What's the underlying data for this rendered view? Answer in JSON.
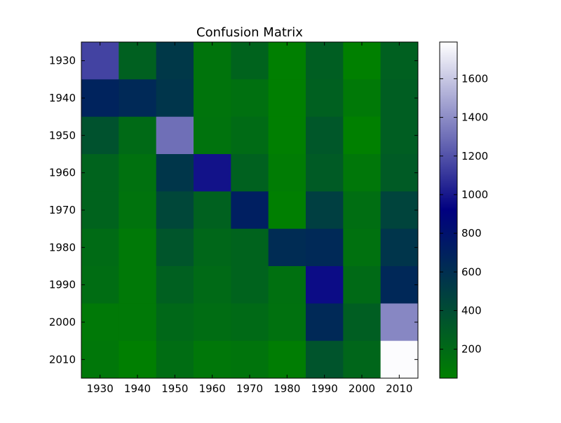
{
  "chart_data": {
    "type": "heatmap",
    "title": "Confusion Matrix",
    "xlabel": "",
    "ylabel": "",
    "x_categories": [
      "1930",
      "1940",
      "1950",
      "1960",
      "1970",
      "1980",
      "1990",
      "2000",
      "2010"
    ],
    "y_categories": [
      "1930",
      "1940",
      "1950",
      "1960",
      "1970",
      "1980",
      "1990",
      "2000",
      "2010"
    ],
    "values": [
      [
        1150,
        270,
        540,
        130,
        250,
        60,
        280,
        50,
        270
      ],
      [
        680,
        640,
        560,
        130,
        160,
        60,
        270,
        100,
        280
      ],
      [
        360,
        200,
        1300,
        140,
        190,
        60,
        330,
        50,
        280
      ],
      [
        250,
        150,
        550,
        980,
        260,
        80,
        300,
        110,
        300
      ],
      [
        250,
        140,
        440,
        260,
        710,
        60,
        490,
        170,
        460
      ],
      [
        190,
        100,
        340,
        220,
        250,
        620,
        640,
        150,
        560
      ],
      [
        180,
        100,
        270,
        200,
        250,
        160,
        960,
        200,
        650
      ],
      [
        100,
        100,
        210,
        180,
        200,
        150,
        640,
        280,
        1380
      ],
      [
        110,
        60,
        180,
        110,
        130,
        70,
        350,
        230,
        1780
      ]
    ],
    "colorbar": {
      "min": 50,
      "max": 1790,
      "ticks": [
        200,
        400,
        600,
        800,
        1000,
        1200,
        1400,
        1600
      ],
      "colormap": [
        "#008000",
        "#000080",
        "#ffffff"
      ]
    },
    "grid": false
  }
}
